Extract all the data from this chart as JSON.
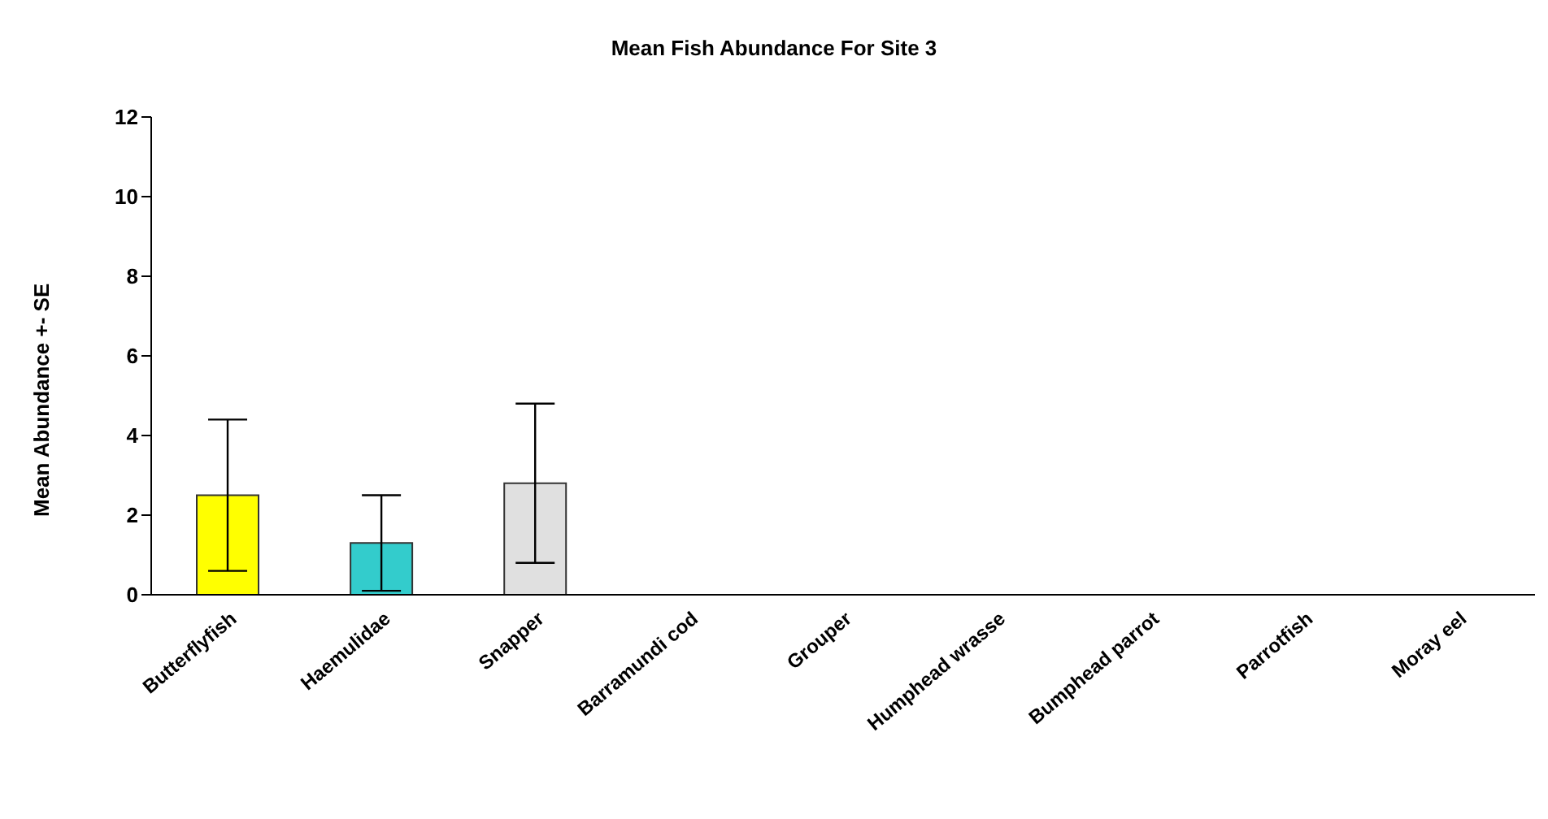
{
  "chart_data": {
    "type": "bar",
    "title": "Mean Fish Abundance For Site 3",
    "ylabel": "Mean Abundance +- SE",
    "categories": [
      "Butterflyfish",
      "Haemulidae",
      "Snapper",
      "Barramundi cod",
      "Grouper",
      "Humphead wrasse",
      "Bumphead parrot",
      "Parrotfish",
      "Moray eel"
    ],
    "values": [
      2.5,
      1.3,
      2.8,
      0,
      0,
      0,
      0,
      0,
      0
    ],
    "errors": [
      1.9,
      1.2,
      2.0,
      null,
      null,
      null,
      null,
      null,
      null
    ],
    "colors": [
      "#ffff00",
      "#33cccc",
      "#e0e0e0",
      "#808080",
      "#808080",
      "#808080",
      "#808080",
      "#808080",
      "#808080"
    ],
    "ylim": [
      0,
      12
    ],
    "yticks": [
      0,
      2,
      4,
      6,
      8,
      10,
      12
    ],
    "grid": false,
    "legend": false
  }
}
